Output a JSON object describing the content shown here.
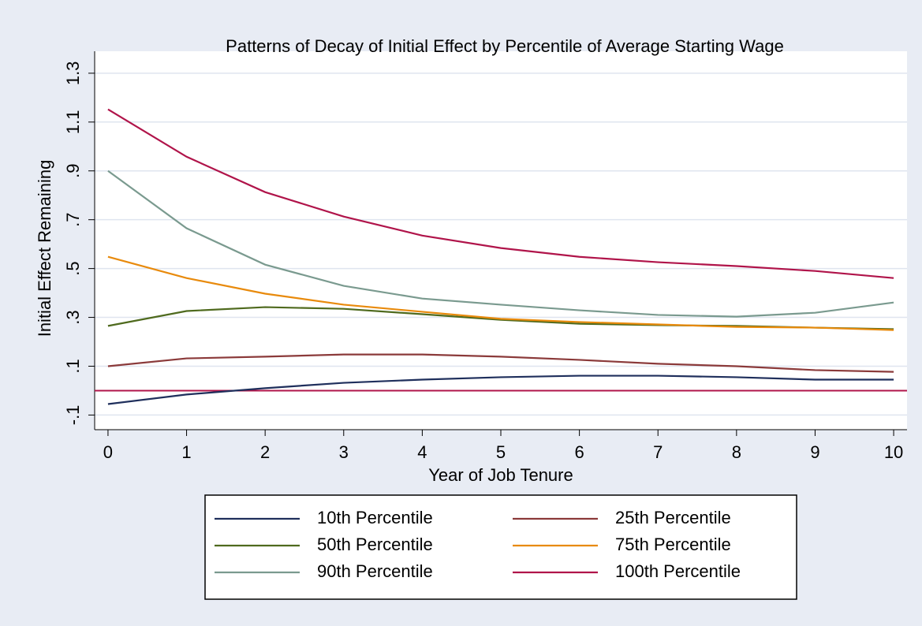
{
  "chart_data": {
    "type": "line",
    "title": "Patterns of Decay of Initial Effect by Percentile of Average Starting Wage",
    "x_label": "Year of Job Tenure",
    "y_label": "Initial Effect Remaining",
    "x": [
      0,
      1,
      2,
      3,
      4,
      5,
      6,
      7,
      8,
      9,
      10
    ],
    "xlim": [
      -0.17,
      10.17
    ],
    "xticks": [
      0,
      1,
      2,
      3,
      4,
      5,
      6,
      7,
      8,
      9,
      10
    ],
    "ylim": [
      -0.16,
      1.39
    ],
    "yticks": [
      {
        "value": -0.1,
        "label": "-.1"
      },
      {
        "value": 0.1,
        "label": ".1"
      },
      {
        "value": 0.3,
        "label": ".3"
      },
      {
        "value": 0.5,
        "label": ".5"
      },
      {
        "value": 0.7,
        "label": ".7"
      },
      {
        "value": 0.9,
        "label": ".9"
      },
      1.1,
      1.3
    ],
    "grid": true,
    "reference_line": {
      "value": 0,
      "color": "#b0144a"
    },
    "series": [
      {
        "name": "10th Percentile",
        "color": "#1f2f5c",
        "values": [
          -0.055,
          -0.016,
          0.01,
          0.032,
          0.045,
          0.055,
          0.061,
          0.061,
          0.055,
          0.045,
          0.045
        ]
      },
      {
        "name": "25th Percentile",
        "color": "#8b3a3a",
        "values": [
          0.1,
          0.132,
          0.139,
          0.148,
          0.148,
          0.139,
          0.126,
          0.11,
          0.1,
          0.084,
          0.077
        ]
      },
      {
        "name": "50th Percentile",
        "color": "#4f6a1e",
        "values": [
          0.265,
          0.326,
          0.342,
          0.335,
          0.313,
          0.29,
          0.274,
          0.268,
          0.265,
          0.258,
          0.252
        ]
      },
      {
        "name": "75th Percentile",
        "color": "#e88a0c",
        "values": [
          0.548,
          0.461,
          0.397,
          0.352,
          0.323,
          0.294,
          0.281,
          0.271,
          0.261,
          0.258,
          0.248
        ]
      },
      {
        "name": "90th Percentile",
        "color": "#7a9a8f",
        "values": [
          0.9,
          0.665,
          0.516,
          0.429,
          0.377,
          0.352,
          0.329,
          0.31,
          0.303,
          0.319,
          0.361
        ]
      },
      {
        "name": "100th Percentile",
        "color": "#b0144a",
        "values": [
          1.152,
          0.958,
          0.813,
          0.713,
          0.635,
          0.584,
          0.548,
          0.526,
          0.51,
          0.49,
          0.461
        ]
      }
    ]
  }
}
